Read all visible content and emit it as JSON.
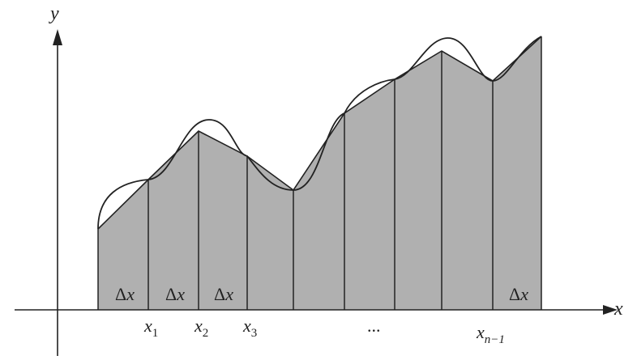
{
  "figure": {
    "axis_labels": {
      "x": "x",
      "y": "y"
    },
    "delta_label": "Δx",
    "delta_symbol": "Δ",
    "delta_var": "x",
    "tick_labels": [
      {
        "base": "x",
        "sub": "1"
      },
      {
        "base": "x",
        "sub": "2"
      },
      {
        "base": "x",
        "sub": "3"
      },
      {
        "base": "x",
        "sub": "n−1"
      }
    ],
    "ellipsis": "...",
    "colors": {
      "fill": "#b0b0b0",
      "stroke": "#222222",
      "background": "#ffffff"
    }
  }
}
